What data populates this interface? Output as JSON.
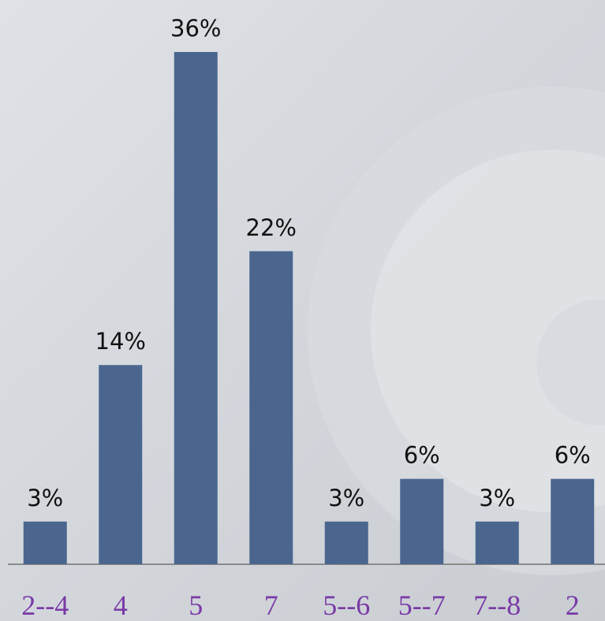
{
  "chart_data": {
    "type": "bar",
    "categories": [
      "2--4",
      "4",
      "5",
      "7",
      "5--6",
      "5--7",
      "7--8",
      "2"
    ],
    "values": [
      3,
      14,
      36,
      22,
      3,
      6,
      3,
      6
    ],
    "value_labels": [
      "3%",
      "14%",
      "36%",
      "22%",
      "3%",
      "6%",
      "3%",
      "6%"
    ],
    "color": "#4a668f",
    "ylim": [
      0,
      36
    ]
  }
}
